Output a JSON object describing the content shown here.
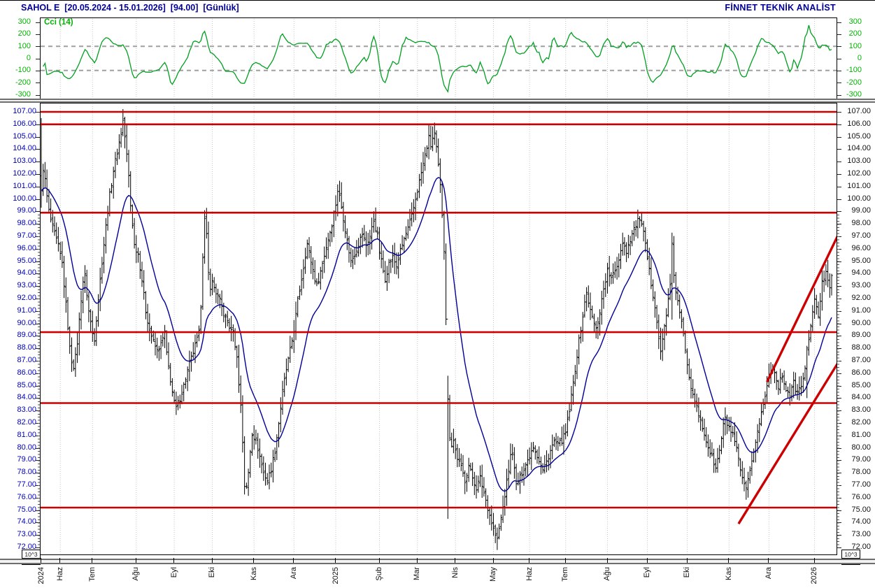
{
  "header": {
    "title": "SAHOL E  [20.05.2024 - 15.01.2026]  [94.00]  [Günlük]",
    "brand": "FİNNET TEKNİK ANALİST"
  },
  "indicator": {
    "label": "Cci (14)"
  },
  "scale_boxes": {
    "left": "10^3",
    "right": "10^3"
  },
  "colors": {
    "accent_blue": "#000099",
    "axis_blue": "#0000bb",
    "green": "#00b300",
    "cci_line": "#00a020",
    "level_red": "#cc0000",
    "ma_blue": "#000099",
    "bar_black": "#000000",
    "grid": "#c6c6c6",
    "dash": "#a0a0a0"
  },
  "chart_data": [
    {
      "type": "line",
      "name": "Cci (14)",
      "panel": "indicator",
      "derived_from": "ohlc",
      "period": 14,
      "axis": {
        "min": -300,
        "max": 300,
        "step": 100,
        "minor": 50
      },
      "tick_labels": [
        "-300",
        "-200",
        "-100",
        "0",
        "100",
        "200",
        "300"
      ],
      "levels_dashed": [
        100,
        -100
      ],
      "grid": "monthly-vertical-dotted",
      "legend_position": "top-left"
    },
    {
      "type": "ohlc_bars",
      "name": "SAHOL E daily price",
      "panel": "price",
      "bar_count": 417,
      "axis": {
        "min": 72,
        "max": 107,
        "step": 1,
        "minor": 0.25
      },
      "tick_labels": [
        "72.00",
        "73.00",
        "74.00",
        "75.00",
        "76.00",
        "77.00",
        "78.00",
        "79.00",
        "80.00",
        "81.00",
        "82.00",
        "83.00",
        "84.00",
        "85.00",
        "86.00",
        "87.00",
        "88.00",
        "89.00",
        "90.00",
        "91.00",
        "92.00",
        "93.00",
        "94.00",
        "95.00",
        "96.00",
        "97.00",
        "98.00",
        "99.00",
        "100.00",
        "101.00",
        "102.00",
        "103.00",
        "104.00",
        "105.00",
        "106.00",
        "107.00"
      ],
      "last_price": "94.00",
      "levels": [
        107.0,
        106.0,
        98.9,
        89.3,
        83.6,
        75.2
      ],
      "trendlines": [
        {
          "from": [
            382,
            85.3
          ],
          "to": [
            420,
            97.3
          ]
        },
        {
          "from": [
            367,
            73.9
          ],
          "to": [
            420,
            87.0
          ]
        }
      ],
      "ma": {
        "type": "ema",
        "period": 20
      },
      "months": [
        [
          "2024",
          0
        ],
        [
          "Haz",
          10
        ],
        [
          "Tem",
          27
        ],
        [
          "Ağu",
          50
        ],
        [
          "Eyl",
          70
        ],
        [
          "Eki",
          90
        ],
        [
          "Kas",
          112
        ],
        [
          "Ara",
          133
        ],
        [
          "2025",
          155
        ],
        [
          "Şub",
          178
        ],
        [
          "Mar",
          198
        ],
        [
          "Nis",
          218
        ],
        [
          "May",
          238
        ],
        [
          "Haz",
          257
        ],
        [
          "Tem",
          276
        ],
        [
          "Ağu",
          298
        ],
        [
          "Eyl",
          319
        ],
        [
          "Eki",
          340
        ],
        [
          "Kas",
          362
        ],
        [
          "Ara",
          383
        ],
        [
          "2026",
          407
        ]
      ],
      "close_anchors": [
        [
          0,
          100.5
        ],
        [
          1,
          102.5
        ],
        [
          2,
          101.5
        ],
        [
          3,
          100.2
        ],
        [
          4,
          99.0
        ],
        [
          5,
          98.3
        ],
        [
          7,
          97.2
        ],
        [
          9,
          96.2
        ],
        [
          11,
          94.8
        ],
        [
          13,
          91.5
        ],
        [
          15,
          88.0
        ],
        [
          16,
          87.0
        ],
        [
          17,
          86.6
        ],
        [
          18,
          87.3
        ],
        [
          19,
          88.5
        ],
        [
          21,
          92.0
        ],
        [
          22,
          93.4
        ],
        [
          23,
          93.8
        ],
        [
          25,
          91.0
        ],
        [
          27,
          89.2
        ],
        [
          28,
          88.8
        ],
        [
          30,
          92.0
        ],
        [
          32,
          95.0
        ],
        [
          34,
          97.8
        ],
        [
          36,
          100.3
        ],
        [
          38,
          102.3
        ],
        [
          40,
          103.8
        ],
        [
          42,
          105.3
        ],
        [
          43,
          106.3
        ],
        [
          44,
          105.0
        ],
        [
          45,
          103.5
        ],
        [
          46,
          101.8
        ],
        [
          47,
          99.5
        ],
        [
          48,
          98.0
        ],
        [
          49,
          96.3
        ],
        [
          51,
          95.6
        ],
        [
          53,
          93.5
        ],
        [
          55,
          91.0
        ],
        [
          57,
          89.5
        ],
        [
          59,
          88.5
        ],
        [
          61,
          87.8
        ],
        [
          63,
          88.3
        ],
        [
          65,
          89.3
        ],
        [
          66,
          87.5
        ],
        [
          68,
          85.5
        ],
        [
          69,
          84.5
        ],
        [
          70,
          83.6
        ],
        [
          71,
          83.2
        ],
        [
          73,
          84.0
        ],
        [
          75,
          85.0
        ],
        [
          77,
          86.2
        ],
        [
          79,
          87.2
        ],
        [
          81,
          88.2
        ],
        [
          83,
          89.2
        ],
        [
          84,
          91.5
        ],
        [
          85,
          95.5
        ],
        [
          86,
          98.3
        ],
        [
          87,
          97.0
        ],
        [
          88,
          94.0
        ],
        [
          89,
          93.0
        ],
        [
          90,
          93.3
        ],
        [
          92,
          92.5
        ],
        [
          94,
          91.8
        ],
        [
          96,
          90.8
        ],
        [
          98,
          90.2
        ],
        [
          100,
          89.3
        ],
        [
          101,
          89.6
        ],
        [
          102,
          88.0
        ],
        [
          103,
          87.5
        ],
        [
          104,
          85.0
        ],
        [
          105,
          83.5
        ],
        [
          106,
          80.5
        ],
        [
          107,
          77.0
        ],
        [
          108,
          76.8
        ],
        [
          109,
          78.0
        ],
        [
          110,
          79.8
        ],
        [
          111,
          81.2
        ],
        [
          113,
          80.6
        ],
        [
          115,
          79.3
        ],
        [
          117,
          78.0
        ],
        [
          119,
          77.4
        ],
        [
          121,
          78.3
        ],
        [
          123,
          79.8
        ],
        [
          125,
          82.0
        ],
        [
          127,
          84.5
        ],
        [
          129,
          86.3
        ],
        [
          131,
          87.8
        ],
        [
          133,
          89.5
        ],
        [
          135,
          91.8
        ],
        [
          137,
          93.6
        ],
        [
          139,
          95.5
        ],
        [
          140,
          96.4
        ],
        [
          142,
          95.0
        ],
        [
          144,
          93.6
        ],
        [
          145,
          93.0
        ],
        [
          147,
          94.2
        ],
        [
          149,
          95.5
        ],
        [
          151,
          96.8
        ],
        [
          153,
          98.0
        ],
        [
          155,
          99.6
        ],
        [
          156,
          100.7
        ],
        [
          157,
          100.2
        ],
        [
          159,
          98.5
        ],
        [
          161,
          96.6
        ],
        [
          163,
          95.0
        ],
        [
          165,
          95.6
        ],
        [
          167,
          96.4
        ],
        [
          169,
          97.2
        ],
        [
          171,
          96.3
        ],
        [
          173,
          97.0
        ],
        [
          175,
          98.3
        ],
        [
          177,
          97.0
        ],
        [
          178,
          95.8
        ],
        [
          180,
          94.2
        ],
        [
          181,
          93.6
        ],
        [
          183,
          94.8
        ],
        [
          185,
          95.3
        ],
        [
          187,
          94.6
        ],
        [
          189,
          95.8
        ],
        [
          191,
          96.8
        ],
        [
          193,
          97.6
        ],
        [
          195,
          98.6
        ],
        [
          197,
          100.0
        ],
        [
          199,
          101.4
        ],
        [
          201,
          102.8
        ],
        [
          203,
          104.2
        ],
        [
          204,
          104.9
        ],
        [
          205,
          104.3
        ],
        [
          206,
          104.9
        ],
        [
          207,
          105.2
        ],
        [
          208,
          104.0
        ],
        [
          209,
          102.6
        ],
        [
          210,
          101.0
        ],
        [
          211,
          98.8
        ],
        [
          212,
          96.0
        ],
        [
          213,
          90.5
        ],
        [
          214,
          83.8
        ],
        [
          215,
          81.0
        ],
        [
          216,
          80.3
        ],
        [
          217,
          80.6
        ],
        [
          218,
          79.8
        ],
        [
          219,
          79.2
        ],
        [
          221,
          78.4
        ],
        [
          223,
          77.4
        ],
        [
          225,
          78.6
        ],
        [
          227,
          77.6
        ],
        [
          229,
          76.8
        ],
        [
          231,
          77.6
        ],
        [
          233,
          76.4
        ],
        [
          235,
          75.2
        ],
        [
          237,
          74.0
        ],
        [
          239,
          73.0
        ],
        [
          240,
          72.6
        ],
        [
          241,
          73.5
        ],
        [
          243,
          75.2
        ],
        [
          245,
          77.2
        ],
        [
          247,
          79.3
        ],
        [
          248,
          79.8
        ],
        [
          249,
          78.2
        ],
        [
          250,
          77.0
        ],
        [
          252,
          77.6
        ],
        [
          254,
          78.4
        ],
        [
          256,
          79.0
        ],
        [
          258,
          79.8
        ],
        [
          259,
          80.2
        ],
        [
          261,
          79.4
        ],
        [
          263,
          78.6
        ],
        [
          264,
          78.2
        ],
        [
          266,
          78.9
        ],
        [
          268,
          79.8
        ],
        [
          270,
          80.5
        ],
        [
          272,
          80.2
        ],
        [
          274,
          80.6
        ],
        [
          276,
          81.2
        ],
        [
          278,
          83.0
        ],
        [
          280,
          85.2
        ],
        [
          282,
          87.5
        ],
        [
          284,
          89.6
        ],
        [
          286,
          91.6
        ],
        [
          287,
          92.5
        ],
        [
          289,
          91.0
        ],
        [
          291,
          90.0
        ],
        [
          292,
          89.5
        ],
        [
          294,
          91.0
        ],
        [
          296,
          92.8
        ],
        [
          298,
          94.2
        ],
        [
          300,
          93.6
        ],
        [
          302,
          94.2
        ],
        [
          304,
          95.2
        ],
        [
          306,
          96.6
        ],
        [
          308,
          95.8
        ],
        [
          310,
          96.8
        ],
        [
          312,
          97.6
        ],
        [
          314,
          98.2
        ],
        [
          315,
          98.5
        ],
        [
          317,
          97.2
        ],
        [
          319,
          95.2
        ],
        [
          321,
          93.2
        ],
        [
          323,
          91.5
        ],
        [
          325,
          88.8
        ],
        [
          326,
          87.6
        ],
        [
          328,
          89.8
        ],
        [
          330,
          91.8
        ],
        [
          331,
          93.0
        ],
        [
          332,
          96.2
        ],
        [
          333,
          94.0
        ],
        [
          334,
          92.6
        ],
        [
          336,
          90.8
        ],
        [
          338,
          89.2
        ],
        [
          340,
          86.8
        ],
        [
          342,
          85.0
        ],
        [
          344,
          83.8
        ],
        [
          346,
          82.6
        ],
        [
          348,
          81.6
        ],
        [
          350,
          80.6
        ],
        [
          352,
          79.6
        ],
        [
          354,
          78.8
        ],
        [
          355,
          78.3
        ],
        [
          357,
          79.8
        ],
        [
          359,
          81.8
        ],
        [
          360,
          82.3
        ],
        [
          362,
          81.6
        ],
        [
          364,
          81.0
        ],
        [
          366,
          79.8
        ],
        [
          368,
          78.2
        ],
        [
          370,
          76.9
        ],
        [
          371,
          76.6
        ],
        [
          373,
          78.0
        ],
        [
          375,
          79.8
        ],
        [
          377,
          81.3
        ],
        [
          379,
          82.8
        ],
        [
          381,
          84.2
        ],
        [
          383,
          85.8
        ],
        [
          385,
          86.6
        ],
        [
          386,
          86.0
        ],
        [
          388,
          85.0
        ],
        [
          390,
          85.8
        ],
        [
          392,
          84.8
        ],
        [
          394,
          84.2
        ],
        [
          396,
          85.2
        ],
        [
          398,
          84.4
        ],
        [
          400,
          85.0
        ],
        [
          402,
          86.3
        ],
        [
          403,
          87.8
        ],
        [
          405,
          90.0
        ],
        [
          407,
          91.8
        ],
        [
          409,
          90.6
        ],
        [
          411,
          93.2
        ],
        [
          413,
          94.3
        ],
        [
          415,
          93.0
        ],
        [
          416,
          94.0
        ]
      ],
      "bar_overrides": [
        [
          0,
          106.5,
          99.3
        ],
        [
          214,
          85.8,
          74.3
        ],
        [
          240,
          73.6,
          71.8
        ],
        [
          332,
          97.3,
          90.3
        ],
        [
          403,
          88.2,
          84.0
        ]
      ],
      "render_hints": {
        "close_jitter": 0.5,
        "range_jitter": 0.85,
        "range_base": 0.12,
        "tick_len": 1.7
      }
    }
  ]
}
